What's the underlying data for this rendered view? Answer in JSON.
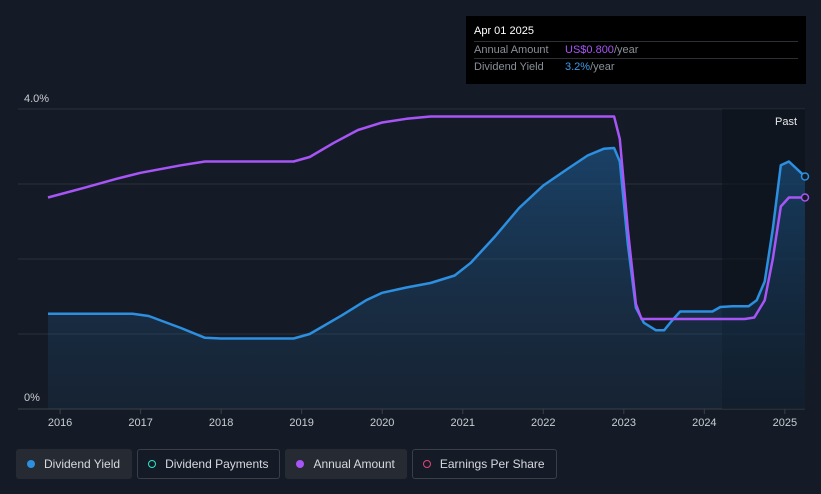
{
  "chart_data": {
    "type": "line",
    "y_tick_labels": [
      "4.0%",
      "0%"
    ],
    "ylim": [
      0,
      4.0
    ],
    "xlim": [
      2015.85,
      2025.25
    ],
    "x_ticks": [
      "2016",
      "2017",
      "2018",
      "2019",
      "2020",
      "2021",
      "2022",
      "2023",
      "2024",
      "2025"
    ],
    "past_label": "Past",
    "series": [
      {
        "name": "Dividend Yield",
        "color": "#2d8fe0",
        "filled": true,
        "points": [
          [
            2015.85,
            1.27
          ],
          [
            2016.5,
            1.27
          ],
          [
            2016.9,
            1.27
          ],
          [
            2017.1,
            1.24
          ],
          [
            2017.5,
            1.08
          ],
          [
            2017.8,
            0.95
          ],
          [
            2018.0,
            0.94
          ],
          [
            2018.5,
            0.94
          ],
          [
            2018.9,
            0.94
          ],
          [
            2019.1,
            1.0
          ],
          [
            2019.5,
            1.25
          ],
          [
            2019.8,
            1.45
          ],
          [
            2020.0,
            1.55
          ],
          [
            2020.3,
            1.62
          ],
          [
            2020.6,
            1.68
          ],
          [
            2020.9,
            1.78
          ],
          [
            2021.1,
            1.95
          ],
          [
            2021.4,
            2.3
          ],
          [
            2021.7,
            2.68
          ],
          [
            2022.0,
            2.98
          ],
          [
            2022.3,
            3.2
          ],
          [
            2022.55,
            3.38
          ],
          [
            2022.75,
            3.47
          ],
          [
            2022.88,
            3.48
          ],
          [
            2022.95,
            3.3
          ],
          [
            2023.05,
            2.2
          ],
          [
            2023.15,
            1.35
          ],
          [
            2023.25,
            1.15
          ],
          [
            2023.4,
            1.05
          ],
          [
            2023.5,
            1.05
          ],
          [
            2023.6,
            1.18
          ],
          [
            2023.7,
            1.3
          ],
          [
            2023.8,
            1.3
          ],
          [
            2024.0,
            1.3
          ],
          [
            2024.1,
            1.3
          ],
          [
            2024.2,
            1.36
          ],
          [
            2024.35,
            1.37
          ],
          [
            2024.55,
            1.37
          ],
          [
            2024.65,
            1.45
          ],
          [
            2024.75,
            1.7
          ],
          [
            2024.85,
            2.4
          ],
          [
            2024.95,
            3.25
          ],
          [
            2025.05,
            3.3
          ],
          [
            2025.2,
            3.15
          ],
          [
            2025.25,
            3.1
          ]
        ]
      },
      {
        "name": "Annual Amount",
        "color": "#a855f7",
        "filled": false,
        "points": [
          [
            2015.85,
            2.82
          ],
          [
            2016.3,
            2.95
          ],
          [
            2016.7,
            3.07
          ],
          [
            2017.0,
            3.15
          ],
          [
            2017.5,
            3.25
          ],
          [
            2017.8,
            3.3
          ],
          [
            2018.0,
            3.3
          ],
          [
            2018.5,
            3.3
          ],
          [
            2018.9,
            3.3
          ],
          [
            2019.1,
            3.36
          ],
          [
            2019.4,
            3.55
          ],
          [
            2019.7,
            3.72
          ],
          [
            2020.0,
            3.82
          ],
          [
            2020.3,
            3.87
          ],
          [
            2020.6,
            3.9
          ],
          [
            2021.0,
            3.9
          ],
          [
            2021.5,
            3.9
          ],
          [
            2022.0,
            3.9
          ],
          [
            2022.5,
            3.9
          ],
          [
            2022.88,
            3.9
          ],
          [
            2022.95,
            3.6
          ],
          [
            2023.05,
            2.4
          ],
          [
            2023.15,
            1.4
          ],
          [
            2023.22,
            1.2
          ],
          [
            2023.5,
            1.2
          ],
          [
            2024.0,
            1.2
          ],
          [
            2024.5,
            1.2
          ],
          [
            2024.62,
            1.22
          ],
          [
            2024.75,
            1.45
          ],
          [
            2024.85,
            2.0
          ],
          [
            2024.95,
            2.7
          ],
          [
            2025.05,
            2.82
          ],
          [
            2025.25,
            2.82
          ]
        ]
      }
    ],
    "end_markers": [
      {
        "series": "Dividend Yield",
        "x": 2025.25,
        "y": 3.1,
        "color": "#2d8fe0"
      },
      {
        "series": "Annual Amount",
        "x": 2025.25,
        "y": 2.82,
        "color": "#a855f7"
      }
    ],
    "past_region_start": 2024.22
  },
  "tooltip": {
    "date": "Apr 01 2025",
    "annual_amount_label": "Annual Amount",
    "annual_amount_value": "US$0.800",
    "annual_amount_unit": "/year",
    "dividend_yield_label": "Dividend Yield",
    "dividend_yield_value": "3.2%",
    "dividend_yield_unit": "/year"
  },
  "legend": [
    {
      "label": "Dividend Yield",
      "color": "#2d8fe0",
      "style": "filled",
      "active": true
    },
    {
      "label": "Dividend Payments",
      "color": "#2ee6c8",
      "style": "hollow",
      "active": false
    },
    {
      "label": "Annual Amount",
      "color": "#a855f7",
      "style": "filled",
      "active": true
    },
    {
      "label": "Earnings Per Share",
      "color": "#e0457b",
      "style": "hollow",
      "active": false
    }
  ]
}
